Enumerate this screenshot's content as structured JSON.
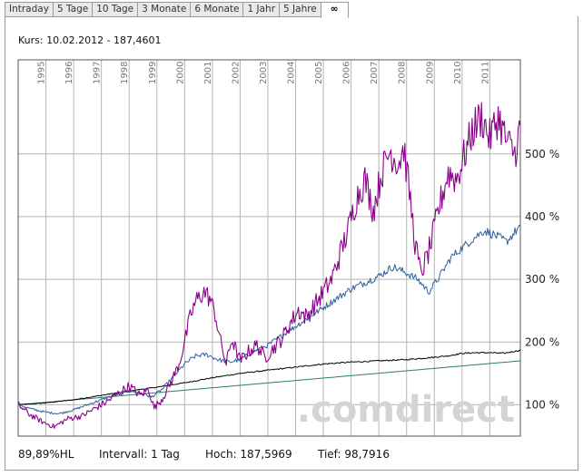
{
  "tabs": [
    "Intraday",
    "5 Tage",
    "10 Tage",
    "3 Monate",
    "6 Monate",
    "1 Jahr",
    "5 Jahre",
    "∞"
  ],
  "active_tab": "∞",
  "header": {
    "kurs": "Kurs: 10.02.2012 - 187,4601"
  },
  "footer": {
    "hl": "89,89%HL",
    "intervall": "Intervall: 1 Tag",
    "hoch": "Hoch: 187,5969",
    "tief": "Tief: 98,7916"
  },
  "watermark": ".comdirect",
  "colors": {
    "purple": "#8b008b",
    "blue": "#2f5f9e",
    "black": "#000000",
    "green": "#2e7d5e",
    "grid": "#b4b4b4"
  },
  "chart_data": {
    "type": "line",
    "title": "",
    "xlabel": "",
    "ylabel": "",
    "x_range": [
      1994.0,
      2012.1
    ],
    "ylim": [
      50,
      650
    ],
    "y_ticks": [
      100,
      200,
      300,
      400,
      500
    ],
    "y_tick_labels": [
      "100 %",
      "200 %",
      "300 %",
      "400 %",
      "500 %"
    ],
    "x_ticks": [
      1995,
      1996,
      1997,
      1998,
      1999,
      2000,
      2001,
      2002,
      2003,
      2004,
      2005,
      2006,
      2007,
      2008,
      2009,
      2010,
      2011
    ],
    "series": [
      {
        "name": "purple",
        "color": "#8b008b",
        "x": [
          1994.0,
          1994.4,
          1994.9,
          1995.3,
          1995.8,
          1996.3,
          1996.8,
          1997.2,
          1997.6,
          1998.0,
          1998.4,
          1998.7,
          1998.9,
          1999.2,
          1999.5,
          1999.8,
          2000.0,
          2000.2,
          2000.4,
          2000.7,
          2000.9,
          2001.1,
          2001.3,
          2001.5,
          2001.7,
          2002.0,
          2002.3,
          2002.6,
          2002.9,
          2003.2,
          2003.5,
          2003.8,
          2004.1,
          2004.4,
          2004.7,
          2005.0,
          2005.3,
          2005.6,
          2005.9,
          2006.2,
          2006.5,
          2006.8,
          2007.1,
          2007.4,
          2007.7,
          2007.9,
          2008.1,
          2008.3,
          2008.5,
          2008.7,
          2008.9,
          2009.2,
          2009.5,
          2009.8,
          2010.1,
          2010.4,
          2010.7,
          2011.0,
          2011.3,
          2011.6,
          2011.9,
          2012.1
        ],
        "y": [
          100,
          85,
          72,
          65,
          78,
          82,
          95,
          105,
          118,
          130,
          115,
          125,
          95,
          110,
          135,
          165,
          200,
          240,
          265,
          280,
          270,
          245,
          200,
          165,
          205,
          170,
          185,
          195,
          175,
          190,
          205,
          230,
          250,
          240,
          260,
          280,
          300,
          340,
          380,
          430,
          460,
          410,
          470,
          505,
          485,
          510,
          440,
          360,
          310,
          330,
          360,
          420,
          470,
          460,
          500,
          540,
          560,
          525,
          560,
          520,
          500,
          545
        ]
      },
      {
        "name": "blue",
        "color": "#2f5f9e",
        "x": [
          1994.0,
          1994.5,
          1995.0,
          1995.5,
          1996.0,
          1996.5,
          1997.0,
          1997.5,
          1998.0,
          1998.5,
          1998.8,
          1999.2,
          1999.6,
          2000.0,
          2000.4,
          2000.8,
          2001.2,
          2001.6,
          2002.0,
          2002.5,
          2003.0,
          2003.5,
          2004.0,
          2004.5,
          2005.0,
          2005.5,
          2006.0,
          2006.5,
          2007.0,
          2007.5,
          2008.0,
          2008.4,
          2008.8,
          2009.2,
          2009.6,
          2010.0,
          2010.4,
          2010.8,
          2011.2,
          2011.6,
          2012.1
        ],
        "y": [
          100,
          93,
          88,
          86,
          92,
          100,
          108,
          116,
          122,
          118,
          112,
          125,
          145,
          165,
          178,
          180,
          172,
          168,
          172,
          185,
          195,
          210,
          225,
          240,
          255,
          270,
          285,
          295,
          305,
          320,
          310,
          300,
          280,
          305,
          335,
          350,
          365,
          378,
          370,
          360,
          385
        ]
      },
      {
        "name": "black",
        "color": "#000000",
        "x": [
          1994.0,
          1995.0,
          1996.0,
          1997.0,
          1998.0,
          1999.0,
          2000.0,
          2001.0,
          2002.0,
          2003.0,
          2004.0,
          2005.0,
          2006.0,
          2007.0,
          2008.0,
          2008.8,
          2009.5,
          2010.0,
          2010.5,
          2011.0,
          2011.5,
          2012.1
        ],
        "y": [
          100,
          103,
          108,
          115,
          122,
          128,
          135,
          143,
          150,
          155,
          160,
          165,
          168,
          170,
          172,
          175,
          178,
          182,
          183,
          183,
          182,
          187
        ]
      },
      {
        "name": "green",
        "color": "#2e7d5e",
        "x": [
          1994.0,
          2012.1
        ],
        "y": [
          100,
          170
        ]
      }
    ]
  }
}
